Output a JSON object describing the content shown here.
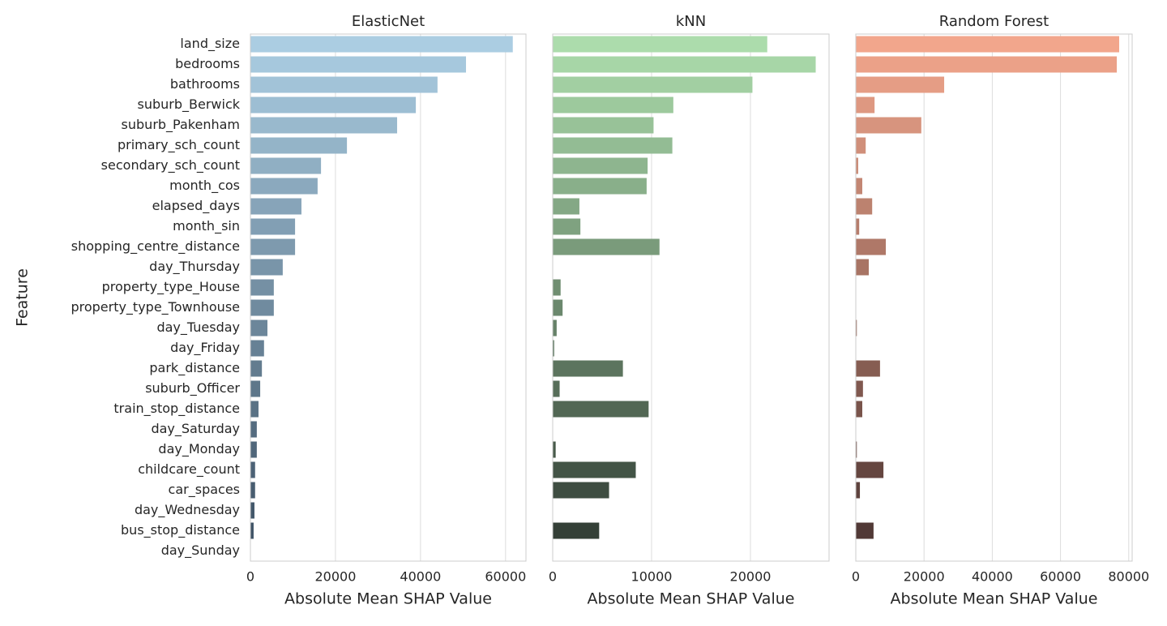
{
  "chart_data": [
    {
      "type": "bar",
      "orientation": "horizontal",
      "title": "ElasticNet",
      "xlabel": "Absolute Mean SHAP Value",
      "ylabel": "Feature",
      "categories": [
        "land_size",
        "bedrooms",
        "bathrooms",
        "suburb_Berwick",
        "suburb_Pakenham",
        "primary_sch_count",
        "secondary_sch_count",
        "month_cos",
        "elapsed_days",
        "month_sin",
        "shopping_centre_distance",
        "day_Thursday",
        "property_type_House",
        "property_type_Townhouse",
        "day_Tuesday",
        "day_Friday",
        "park_distance",
        "suburb_Officer",
        "train_stop_distance",
        "day_Saturday",
        "day_Monday",
        "childcare_count",
        "car_spaces",
        "day_Wednesday",
        "bus_stop_distance",
        "day_Sunday"
      ],
      "values": [
        61700,
        50700,
        44000,
        38900,
        34500,
        22700,
        16600,
        15800,
        12000,
        10500,
        10500,
        7600,
        5500,
        5500,
        4000,
        3200,
        2700,
        2300,
        1900,
        1500,
        1500,
        1100,
        1100,
        950,
        750,
        0
      ],
      "color_range": [
        "#abcde2",
        "#3a4e61"
      ],
      "xlim": [
        0,
        64800
      ],
      "xticks": [
        0,
        20000,
        40000,
        60000
      ],
      "grid": true
    },
    {
      "type": "bar",
      "orientation": "horizontal",
      "title": "kNN",
      "xlabel": "Absolute Mean SHAP Value",
      "values": [
        21700,
        26600,
        20200,
        12200,
        10200,
        12100,
        9600,
        9500,
        2700,
        2800,
        10800,
        0,
        800,
        1000,
        400,
        150,
        7100,
        700,
        9700,
        0,
        300,
        8400,
        5700,
        0,
        4700,
        0
      ],
      "color_range": [
        "#acdcac",
        "#2f3a32"
      ],
      "xlim": [
        0,
        27950
      ],
      "xticks": [
        0,
        10000,
        20000
      ],
      "grid": true
    },
    {
      "type": "bar",
      "orientation": "horizontal",
      "title": "Random Forest",
      "xlabel": "Absolute Mean SHAP Value",
      "values": [
        77200,
        76500,
        25900,
        5500,
        19200,
        2900,
        700,
        1900,
        4800,
        1000,
        8800,
        3800,
        0,
        0,
        300,
        0,
        7100,
        2100,
        1900,
        0,
        300,
        8100,
        1200,
        0,
        5200,
        0
      ],
      "color_range": [
        "#f2a68c",
        "#4a3432"
      ],
      "xlim": [
        0,
        81000
      ],
      "xticks": [
        0,
        20000,
        40000,
        60000,
        80000
      ],
      "grid": true
    }
  ]
}
